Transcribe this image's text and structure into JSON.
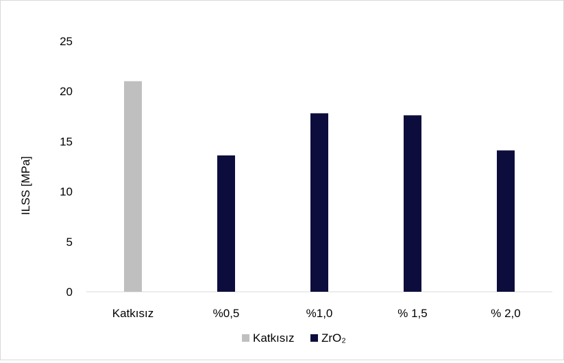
{
  "chart_data": {
    "type": "bar",
    "title": "",
    "xlabel": "",
    "ylabel": "ILSS [MPa]",
    "ylim": [
      0,
      25
    ],
    "yticks": [
      0,
      5,
      10,
      15,
      20,
      25
    ],
    "grid": false,
    "legend_position": "bottom",
    "categories": [
      "Katkısız",
      "%0,5",
      "%1,0",
      "% 1,5",
      "% 2,0"
    ],
    "series": [
      {
        "name": "Katkısız",
        "color": "#bfbfbf",
        "values": [
          21.0,
          null,
          null,
          null,
          null
        ]
      },
      {
        "name": "ZrO₂",
        "color": "#0d0d3d",
        "values": [
          null,
          13.6,
          17.8,
          17.6,
          14.1
        ]
      }
    ]
  }
}
